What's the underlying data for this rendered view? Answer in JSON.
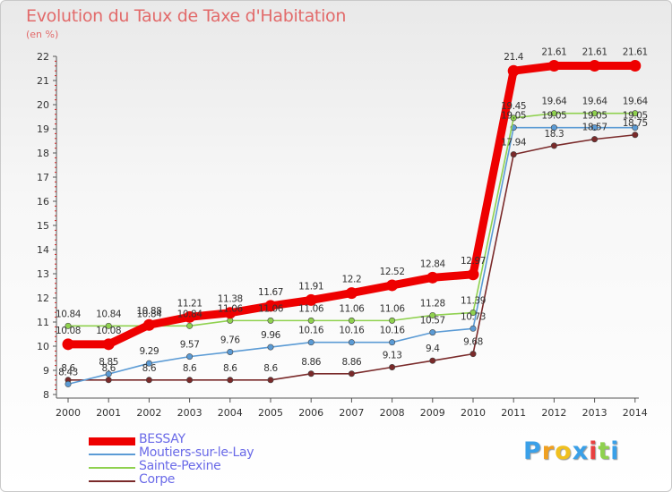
{
  "chart_data": {
    "type": "line",
    "title": "Evolution du Taux de Taxe d'Habitation",
    "subtitle": "(en %)",
    "x": [
      "2000",
      "2001",
      "2002",
      "2003",
      "2004",
      "2005",
      "2006",
      "2007",
      "2008",
      "2009",
      "2010",
      "2011",
      "2012",
      "2013",
      "2014"
    ],
    "ylim": [
      8,
      22
    ],
    "yticks": [
      "8",
      "9",
      "10",
      "11",
      "12",
      "13",
      "14",
      "15",
      "16",
      "17",
      "18",
      "19",
      "20",
      "21",
      "22"
    ],
    "grid": false,
    "series": [
      {
        "name": "BESSAY",
        "color": "#ee0000",
        "values": [
          10.08,
          10.08,
          10.88,
          11.21,
          11.38,
          11.67,
          11.91,
          12.2,
          12.52,
          12.84,
          12.97,
          21.4,
          21.61,
          21.61,
          21.61
        ],
        "labels": [
          "10.08",
          "10.08",
          "10.88",
          "11.21",
          "11.38",
          "11.67",
          "11.91",
          "12.2",
          "12.52",
          "12.84",
          "12.97",
          "21.4",
          "21.61",
          "21.61",
          "21.61"
        ]
      },
      {
        "name": "Moutiers-sur-le-Lay",
        "color": "#5b9bd5",
        "values": [
          8.43,
          8.85,
          9.29,
          9.57,
          9.76,
          9.96,
          10.16,
          10.16,
          10.16,
          10.57,
          10.73,
          19.05,
          19.05,
          19.05,
          19.05
        ],
        "labels": [
          "8.43",
          "8.85",
          "9.29",
          "9.57",
          "9.76",
          "9.96",
          "10.16",
          "10.16",
          "10.16",
          "10.57",
          "10.73",
          "19.05",
          "19.05",
          "19.05",
          "19.05"
        ]
      },
      {
        "name": "Sainte-Pexine",
        "color": "#8fd14f",
        "values": [
          10.84,
          10.84,
          10.84,
          10.84,
          11.06,
          11.06,
          11.06,
          11.06,
          11.06,
          11.28,
          11.39,
          19.45,
          19.64,
          19.64,
          19.64
        ],
        "labels": [
          "10.84",
          "10.84",
          "10.84",
          "10.84",
          "11.06",
          "11.06",
          "11.06",
          "11.06",
          "11.06",
          "11.28",
          "11.39",
          "19.45",
          "19.64",
          "19.64",
          "19.64"
        ]
      },
      {
        "name": "Corpe",
        "color": "#7a2a2a",
        "values": [
          8.6,
          8.6,
          8.6,
          8.6,
          8.6,
          8.6,
          8.86,
          8.86,
          9.13,
          9.4,
          9.68,
          17.94,
          18.3,
          18.57,
          18.75
        ],
        "labels": [
          "8.6",
          "8.6",
          "8.6",
          "8.6",
          "8.6",
          "8.6",
          "8.86",
          "8.86",
          "9.13",
          "9.4",
          "9.68",
          "17.94",
          "18.3",
          "18.57",
          "18.75"
        ]
      }
    ],
    "legend": "bottom-left"
  },
  "logo": {
    "letters": [
      "P",
      "r",
      "o",
      "x",
      "i",
      "t",
      "i"
    ],
    "colors": [
      "#3aa0e8",
      "#f0a020",
      "#f0c020",
      "#3aa0e8",
      "#e84040",
      "#8fd14f",
      "#3aa0e8"
    ]
  }
}
